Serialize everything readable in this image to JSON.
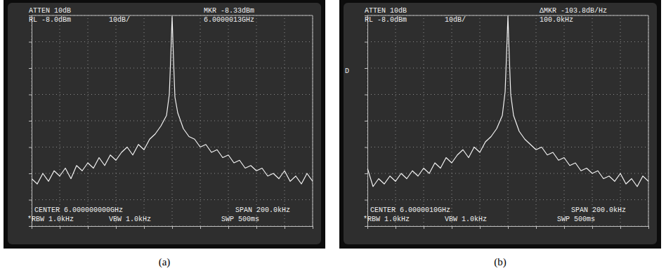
{
  "chart_data": [
    {
      "type": "line",
      "title": "(a)",
      "annotations": [
        "ATTEN 10dB",
        "RL -8.0dBm",
        "10dB/",
        "MKR -8.33dBm",
        "6.0000013GHz",
        "CENTER 6.000000000GHz",
        "SPAN 200.0kHz",
        "*RBW 1.0kHz",
        "VBW 1.0kHz",
        "SWP 500ms"
      ],
      "x": [
        -100,
        -96,
        -92,
        -88,
        -84,
        -80,
        -76,
        -72,
        -68,
        -64,
        -60,
        -56,
        -52,
        -48,
        -44,
        -40,
        -36,
        -32,
        -28,
        -24,
        -20,
        -16,
        -12,
        -8,
        -4,
        -2,
        -1,
        0,
        1,
        2,
        4,
        8,
        12,
        16,
        20,
        24,
        28,
        32,
        36,
        40,
        44,
        48,
        52,
        56,
        60,
        64,
        68,
        72,
        76,
        80,
        84,
        88,
        92,
        96,
        100
      ],
      "series": [
        {
          "color": "#f2f2f2",
          "values": [
            -70,
            -72,
            -68,
            -71,
            -67,
            -69,
            -66,
            -70,
            -65,
            -67,
            -64,
            -66,
            -62,
            -65,
            -61,
            -63,
            -60,
            -58,
            -61,
            -57,
            -59,
            -55,
            -53,
            -50,
            -46,
            -38,
            -24,
            -8.33,
            -25,
            -39,
            -45,
            -51,
            -54,
            -55,
            -58,
            -57,
            -60,
            -59,
            -62,
            -61,
            -64,
            -63,
            -66,
            -65,
            -67,
            -66,
            -69,
            -68,
            -70,
            -67,
            -71,
            -69,
            -72,
            -68,
            -71
          ]
        }
      ],
      "xlim": [
        -100,
        100
      ],
      "xticks": [
        -100,
        -80,
        -60,
        -40,
        -20,
        0,
        20,
        40,
        60,
        80,
        100
      ],
      "ylim": [
        -88,
        -8
      ],
      "yticks": [
        -88,
        -78,
        -68,
        -58,
        -48,
        -38,
        -28,
        -18,
        -8
      ],
      "grid": true,
      "tick_labels": false
    },
    {
      "type": "line",
      "title": "(b)",
      "annotations": [
        "ATTEN 10dB",
        "RL -8.0dBm",
        "10dB/",
        "ΔMKR -103.8dB/Hz",
        "100.0kHz",
        "CENTER 6.0000010GHz",
        "SPAN 200.0kHz",
        "*RBW 1.0kHz",
        "VBW 1.0kHz",
        "SWP 500ms",
        "D"
      ],
      "x": [
        -100,
        -96,
        -92,
        -88,
        -84,
        -80,
        -76,
        -72,
        -68,
        -64,
        -60,
        -56,
        -52,
        -48,
        -44,
        -40,
        -36,
        -32,
        -28,
        -24,
        -20,
        -16,
        -12,
        -8,
        -4,
        -2,
        -1,
        0,
        1,
        2,
        4,
        8,
        12,
        16,
        20,
        24,
        28,
        32,
        36,
        40,
        44,
        48,
        52,
        56,
        60,
        64,
        68,
        72,
        76,
        80,
        84,
        88,
        92,
        96,
        100
      ],
      "series": [
        {
          "color": "#f2f2f2",
          "values": [
            -66,
            -73,
            -70,
            -72,
            -69,
            -71,
            -68,
            -70,
            -67,
            -69,
            -66,
            -68,
            -64,
            -66,
            -62,
            -64,
            -61,
            -59,
            -62,
            -58,
            -60,
            -56,
            -54,
            -51,
            -46,
            -37,
            -23,
            -8.2,
            -24,
            -38,
            -46,
            -52,
            -55,
            -57,
            -59,
            -58,
            -61,
            -60,
            -63,
            -62,
            -65,
            -64,
            -67,
            -66,
            -68,
            -67,
            -70,
            -69,
            -71,
            -68,
            -72,
            -70,
            -73,
            -69,
            -71
          ]
        }
      ],
      "xlim": [
        -100,
        100
      ],
      "xticks": [
        -100,
        -80,
        -60,
        -40,
        -20,
        0,
        20,
        40,
        60,
        80,
        100
      ],
      "ylim": [
        -88,
        -8
      ],
      "yticks": [
        -88,
        -78,
        -68,
        -58,
        -48,
        -38,
        -28,
        -18,
        -8
      ],
      "grid": true,
      "tick_labels": false
    }
  ]
}
